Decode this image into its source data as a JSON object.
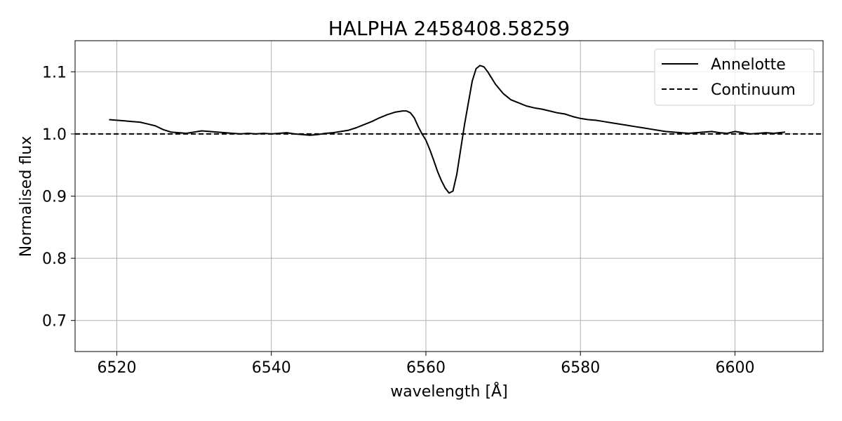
{
  "chart_data": {
    "type": "line",
    "title": "HALPHA 2458408.58259",
    "xlabel": "wavelength [Å]",
    "ylabel": "Normalised flux",
    "xlim": [
      6514.6,
      6611.4
    ],
    "ylim": [
      0.65,
      1.15
    ],
    "xticks": [
      6520,
      6540,
      6560,
      6580,
      6600
    ],
    "yticks": [
      0.7,
      0.8,
      0.9,
      1.0,
      1.1
    ],
    "xtick_labels": [
      "6520",
      "6540",
      "6560",
      "6580",
      "6600"
    ],
    "ytick_labels": [
      "0.7",
      "0.8",
      "0.9",
      "1.0",
      "1.1"
    ],
    "grid": true,
    "legend_position": "top-right",
    "series": [
      {
        "name": "Annelotte",
        "style": "solid",
        "color": "#000000",
        "x": [
          6519.0,
          6520.0,
          6521.0,
          6522.0,
          6523.0,
          6524.0,
          6525.0,
          6526.0,
          6527.0,
          6528.0,
          6529.0,
          6530.0,
          6531.0,
          6532.0,
          6533.0,
          6534.0,
          6535.0,
          6536.0,
          6537.0,
          6538.0,
          6539.0,
          6540.0,
          6541.0,
          6542.0,
          6543.0,
          6544.0,
          6545.0,
          6546.0,
          6547.0,
          6548.0,
          6549.0,
          6550.0,
          6551.0,
          6552.0,
          6553.0,
          6554.0,
          6555.0,
          6556.0,
          6557.0,
          6557.5,
          6558.0,
          6558.5,
          6559.0,
          6559.5,
          6560.0,
          6560.5,
          6561.0,
          6561.5,
          6562.0,
          6562.5,
          6563.0,
          6563.5,
          6564.0,
          6564.5,
          6565.0,
          6565.5,
          6566.0,
          6566.5,
          6567.0,
          6567.5,
          6568.0,
          6568.5,
          6569.0,
          6570.0,
          6571.0,
          6572.0,
          6573.0,
          6574.0,
          6575.0,
          6576.0,
          6577.0,
          6578.0,
          6579.0,
          6580.0,
          6581.0,
          6582.0,
          6583.0,
          6584.0,
          6585.0,
          6586.0,
          6587.0,
          6588.0,
          6589.0,
          6590.0,
          6591.0,
          6592.0,
          6593.0,
          6594.0,
          6595.0,
          6596.0,
          6597.0,
          6598.0,
          6599.0,
          6600.0,
          6601.0,
          6602.0,
          6603.0,
          6604.0,
          6605.0,
          6606.5
        ],
        "y": [
          1.023,
          1.022,
          1.021,
          1.02,
          1.019,
          1.016,
          1.013,
          1.007,
          1.003,
          1.002,
          1.001,
          1.003,
          1.005,
          1.004,
          1.003,
          1.002,
          1.001,
          1.0,
          1.001,
          1.0,
          1.001,
          1.0,
          1.001,
          1.002,
          1.0,
          0.999,
          0.998,
          0.999,
          1.001,
          1.002,
          1.004,
          1.006,
          1.01,
          1.015,
          1.02,
          1.026,
          1.031,
          1.035,
          1.037,
          1.037,
          1.034,
          1.026,
          1.012,
          1.0,
          0.99,
          0.975,
          0.958,
          0.94,
          0.925,
          0.913,
          0.905,
          0.908,
          0.935,
          0.975,
          1.015,
          1.05,
          1.085,
          1.105,
          1.11,
          1.108,
          1.1,
          1.09,
          1.08,
          1.065,
          1.055,
          1.05,
          1.045,
          1.042,
          1.04,
          1.037,
          1.034,
          1.032,
          1.028,
          1.025,
          1.023,
          1.022,
          1.02,
          1.018,
          1.016,
          1.014,
          1.012,
          1.01,
          1.008,
          1.006,
          1.004,
          1.003,
          1.002,
          1.001,
          1.002,
          1.003,
          1.004,
          1.002,
          1.001,
          1.004,
          1.002,
          1.0,
          1.001,
          1.002,
          1.001,
          1.003
        ]
      },
      {
        "name": "Continuum",
        "style": "dashed",
        "color": "#000000",
        "x": [
          6514.6,
          6611.4
        ],
        "y": [
          1.0,
          1.0
        ]
      }
    ]
  }
}
